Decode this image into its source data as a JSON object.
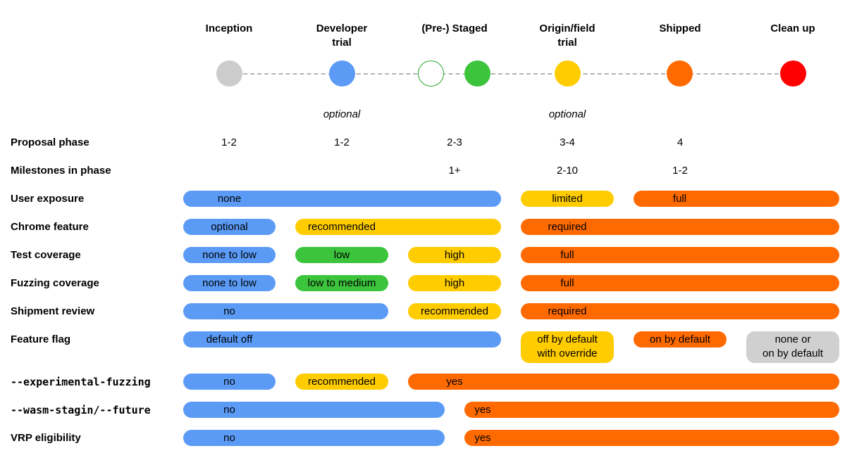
{
  "phases": [
    {
      "label": "Inception",
      "color": "#cccccc"
    },
    {
      "label": "Developer\ntrial",
      "color": "#5b9bf6"
    },
    {
      "label": "(Pre-) Staged",
      "color": "#3cc43c"
    },
    {
      "label": "Origin/field\ntrial",
      "color": "#ffcc00"
    },
    {
      "label": "Shipped",
      "color": "#ff6a00"
    },
    {
      "label": "Clean up",
      "color": "#ff0000"
    }
  ],
  "notes": {
    "developer_trial": "optional",
    "origin_trial": "optional"
  },
  "rows": {
    "proposal_phase": {
      "label": "Proposal phase",
      "values": [
        "1-2",
        "1-2",
        "2-3",
        "3-4",
        "4"
      ]
    },
    "milestones": {
      "label": "Milestones in phase",
      "values": [
        "1+",
        "2-10",
        "1-2"
      ]
    },
    "user_exposure": {
      "label": "User exposure",
      "bars": [
        "none",
        "limited",
        "full"
      ]
    },
    "chrome_feature": {
      "label": "Chrome feature",
      "bars": [
        "optional",
        "recommended",
        "required"
      ]
    },
    "test_coverage": {
      "label": "Test coverage",
      "bars": [
        "none to low",
        "low",
        "high",
        "full"
      ]
    },
    "fuzzing_coverage": {
      "label": "Fuzzing coverage",
      "bars": [
        "none to low",
        "low to medium",
        "high",
        "full"
      ]
    },
    "shipment_review": {
      "label": "Shipment review",
      "bars": [
        "no",
        "recommended",
        "required"
      ]
    },
    "feature_flag": {
      "label": "Feature flag",
      "bars": [
        "default off",
        "off by default\nwith override",
        "on by default",
        "none or\non by default"
      ]
    },
    "experimental_fuzzing": {
      "label": "--experimental-fuzzing",
      "bars": [
        "no",
        "recommended",
        "yes"
      ]
    },
    "wasm_staging": {
      "label": "--wasm-stagin/--future",
      "bars": [
        "no",
        "yes"
      ]
    },
    "vrp": {
      "label": "VRP eligibility",
      "bars": [
        "no",
        "yes"
      ]
    }
  }
}
